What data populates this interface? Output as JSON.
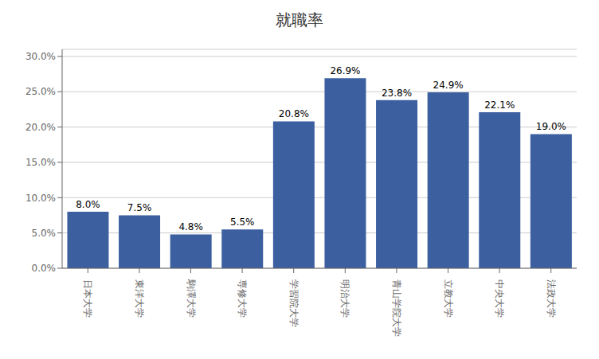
{
  "chart_data": {
    "type": "bar",
    "title": "就職率",
    "categories": [
      "日本大学",
      "東洋大学",
      "駒澤大学",
      "専修大学",
      "学習院大学",
      "明治大学",
      "青山学院大学",
      "立教大学",
      "中央大学",
      "法政大学"
    ],
    "values": [
      0.08,
      0.075,
      0.048,
      0.055,
      0.208,
      0.269,
      0.238,
      0.249,
      0.221,
      0.19
    ],
    "value_labels": [
      "8.0%",
      "7.5%",
      "4.8%",
      "5.5%",
      "20.8%",
      "26.9%",
      "23.8%",
      "24.9%",
      "22.1%",
      "19.0%"
    ],
    "data_labels": true,
    "color": "#3C5FA0",
    "ylim": [
      0,
      0.31
    ],
    "yticks": [
      {
        "value": 0.0,
        "label": "0.0%"
      },
      {
        "value": 0.05,
        "label": "5.0%"
      },
      {
        "value": 0.1,
        "label": "10.0%"
      },
      {
        "value": 0.15,
        "label": "15.0%"
      },
      {
        "value": 0.2,
        "label": "20.0%"
      },
      {
        "value": 0.25,
        "label": "25.0%"
      },
      {
        "value": 0.3,
        "label": "30.0%"
      }
    ],
    "grid": true
  }
}
